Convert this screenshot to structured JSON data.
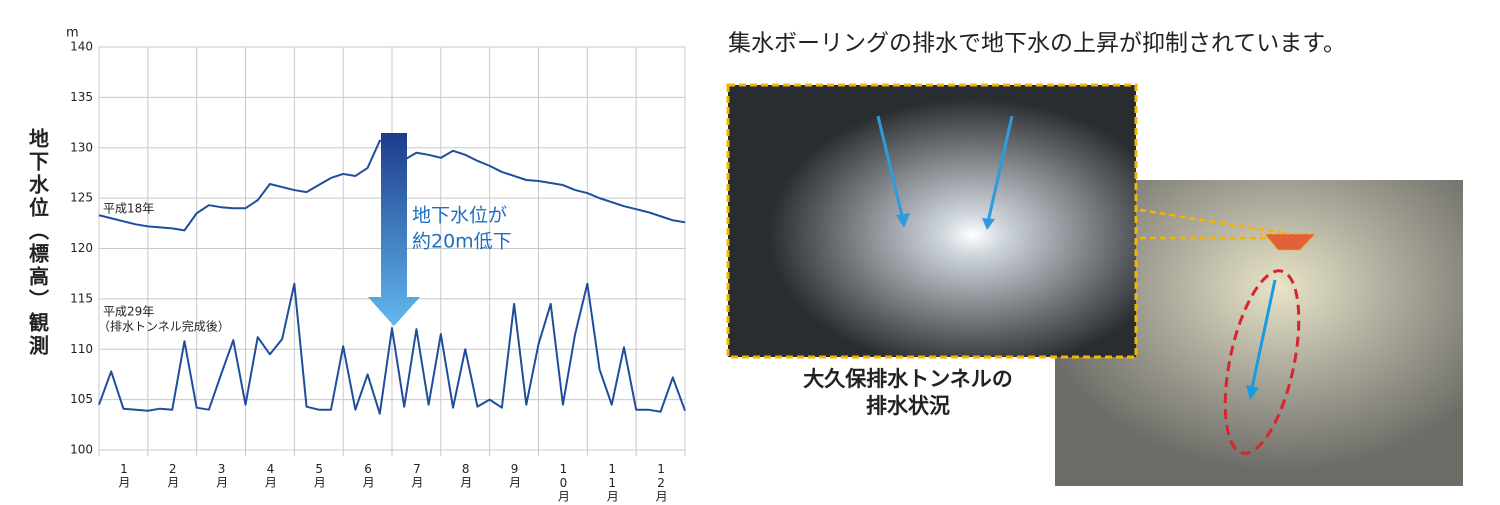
{
  "chart_data": {
    "type": "line",
    "y_label": "地下水位（標高）観測",
    "y_unit": "m",
    "xlim": [
      0,
      12
    ],
    "ylim": [
      100,
      140
    ],
    "yticks": [
      100,
      105,
      110,
      115,
      120,
      125,
      130,
      135,
      140
    ],
    "grid": true,
    "xticks": [
      {
        "value": 0.5,
        "label": "1月"
      },
      {
        "value": 1.5,
        "label": "2月"
      },
      {
        "value": 2.5,
        "label": "3月"
      },
      {
        "value": 3.5,
        "label": "4月"
      },
      {
        "value": 4.5,
        "label": "5月"
      },
      {
        "value": 5.5,
        "label": "6月"
      },
      {
        "value": 6.5,
        "label": "7月"
      },
      {
        "value": 7.5,
        "label": "8月"
      },
      {
        "value": 8.5,
        "label": "9月"
      },
      {
        "value": 9.5,
        "label": "10月"
      },
      {
        "value": 10.5,
        "label": "11月"
      },
      {
        "value": 11.5,
        "label": "12月"
      }
    ],
    "x": [
      0,
      0.25,
      0.5,
      0.75,
      1,
      1.25,
      1.5,
      1.75,
      2,
      2.25,
      2.5,
      2.75,
      3,
      3.25,
      3.5,
      3.75,
      4,
      4.25,
      4.5,
      4.75,
      5,
      5.25,
      5.5,
      5.75,
      6,
      6.25,
      6.5,
      6.75,
      7,
      7.25,
      7.5,
      7.75,
      8,
      8.25,
      8.5,
      8.75,
      9,
      9.25,
      9.5,
      9.75,
      10,
      10.25,
      10.5,
      10.75,
      11,
      11.25,
      11.5,
      11.75,
      12
    ],
    "series": [
      {
        "name": "平成18年",
        "color": "#1f4e9c",
        "values": [
          123.3,
          123,
          122.7,
          122.4,
          122.2,
          122.1,
          122,
          121.8,
          123.5,
          124.3,
          124.1,
          124,
          124,
          124.8,
          126.4,
          126.1,
          125.8,
          125.6,
          126.3,
          127,
          127.4,
          127.2,
          128,
          130.7,
          130.5,
          128.8,
          129.5,
          129.3,
          129,
          129.7,
          129.3,
          128.7,
          128.2,
          127.6,
          127.2,
          126.8,
          126.7,
          126.5,
          126.3,
          125.8,
          125.5,
          125,
          124.6,
          124.2,
          123.9,
          123.6,
          123.2,
          122.8,
          122.6
        ]
      },
      {
        "name": "平成29年",
        "note": "（排水トンネル完成後）",
        "color": "#1f4e9c",
        "values": [
          104.5,
          107.8,
          104.1,
          104,
          103.9,
          104.1,
          104,
          110.8,
          104.2,
          104,
          107.5,
          110.9,
          104.5,
          111.2,
          109.5,
          111,
          116.5,
          104.3,
          104,
          104,
          110.3,
          104,
          107.5,
          103.6,
          112.1,
          104.3,
          112,
          104.5,
          111.5,
          104.2,
          110,
          104.3,
          105,
          104.2,
          114.5,
          104.5,
          110.5,
          114.5,
          104.5,
          111.5,
          116.5,
          108,
          104.5,
          110.2,
          104,
          104,
          103.8,
          107.2,
          103.9
        ]
      }
    ],
    "annotation": [
      "地下水位が",
      "約20m低下"
    ]
  },
  "headline": "集水ボーリングの排水で地下水の上昇が抑制されています。",
  "photo_caption": [
    "大久保排水トンネルの",
    "排水状況"
  ]
}
